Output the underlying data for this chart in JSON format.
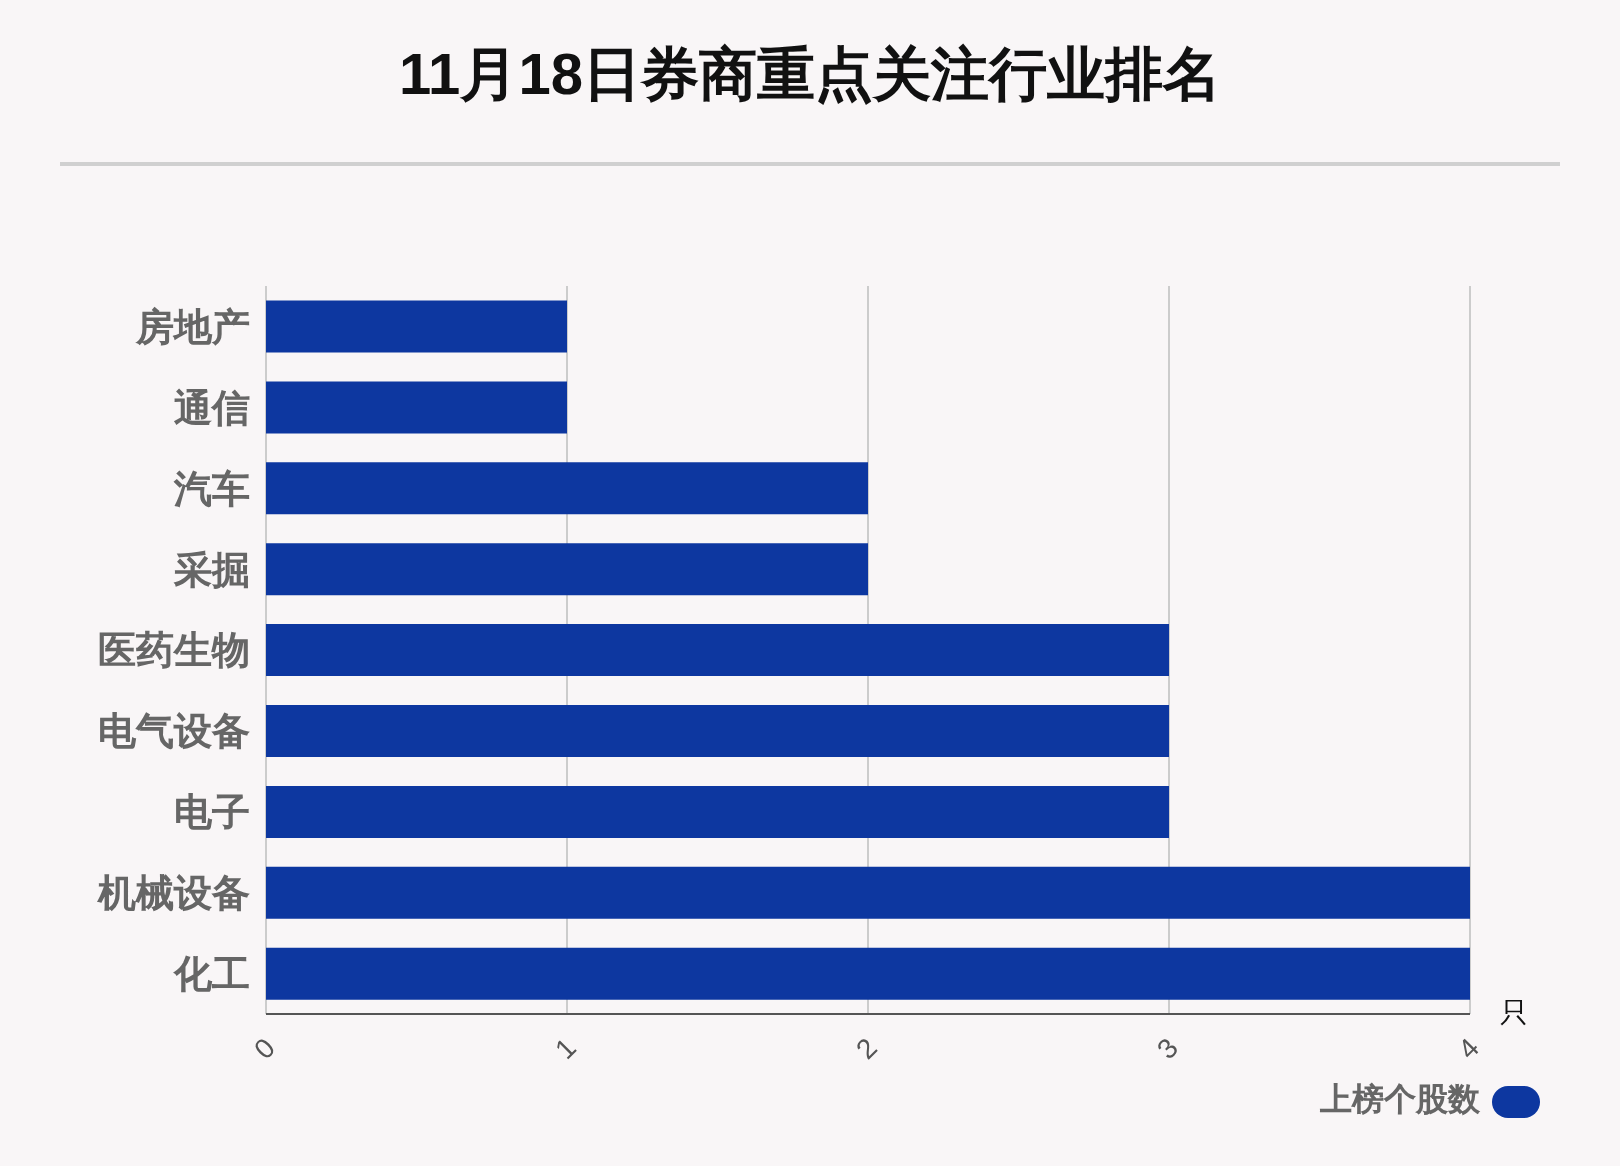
{
  "chart_data": {
    "type": "bar",
    "orientation": "horizontal",
    "title": "11月18日券商重点关注行业排名",
    "xlabel": "只",
    "categories": [
      "房地产",
      "通信",
      "汽车",
      "采掘",
      "医药生物",
      "电气设备",
      "电子",
      "机械设备",
      "化工"
    ],
    "series": [
      {
        "name": "上榜个股数",
        "color": "#0d37a0",
        "values": [
          1,
          1,
          2,
          2,
          3,
          3,
          3,
          4,
          4
        ]
      }
    ],
    "xlim": [
      0,
      4
    ],
    "xticks": [
      0,
      1,
      2,
      3,
      4
    ],
    "grid": "x",
    "legend": "bottom right"
  }
}
